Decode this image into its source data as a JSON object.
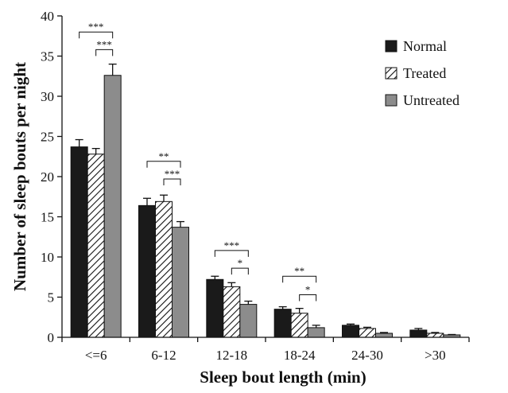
{
  "chart_data": {
    "type": "bar",
    "xlabel": "Sleep bout length (min)",
    "ylabel": "Number of sleep bouts per night",
    "categories": [
      "<=6",
      "6-12",
      "12-18",
      "18-24",
      "24-30",
      ">30"
    ],
    "ylim": [
      0,
      40
    ],
    "yticks": [
      0,
      5,
      10,
      15,
      20,
      25,
      30,
      35,
      40
    ],
    "grid": false,
    "legend_position": "top-right",
    "series": [
      {
        "name": "Normal",
        "fill": "#1a1a1a",
        "pattern": "solid",
        "values": [
          23.7,
          16.4,
          7.2,
          3.5,
          1.5,
          0.9
        ],
        "errors": [
          0.9,
          0.9,
          0.4,
          0.3,
          0.15,
          0.2
        ]
      },
      {
        "name": "Treated",
        "fill": "#ffffff",
        "pattern": "hatch",
        "values": [
          22.8,
          16.9,
          6.3,
          3.0,
          1.1,
          0.5
        ],
        "errors": [
          0.7,
          0.8,
          0.5,
          0.6,
          0.15,
          0.1
        ]
      },
      {
        "name": "Untreated",
        "fill": "#8c8c8c",
        "pattern": "solid",
        "values": [
          32.6,
          13.7,
          4.1,
          1.2,
          0.5,
          0.3
        ],
        "errors": [
          1.4,
          0.7,
          0.4,
          0.3,
          0.1,
          0.05
        ]
      }
    ],
    "annotations": [
      {
        "category": 0,
        "from": 0,
        "to": 2,
        "label": "***",
        "level": 38.0
      },
      {
        "category": 0,
        "from": 1,
        "to": 2,
        "label": "***",
        "level": 35.8
      },
      {
        "category": 1,
        "from": 0,
        "to": 2,
        "label": "**",
        "level": 21.9
      },
      {
        "category": 1,
        "from": 1,
        "to": 2,
        "label": "***",
        "level": 19.7
      },
      {
        "category": 2,
        "from": 0,
        "to": 2,
        "label": "***",
        "level": 10.8
      },
      {
        "category": 2,
        "from": 1,
        "to": 2,
        "label": "*",
        "level": 8.6
      },
      {
        "category": 3,
        "from": 0,
        "to": 2,
        "label": "**",
        "level": 7.6
      },
      {
        "category": 3,
        "from": 1,
        "to": 2,
        "label": "*",
        "level": 5.3
      }
    ]
  }
}
